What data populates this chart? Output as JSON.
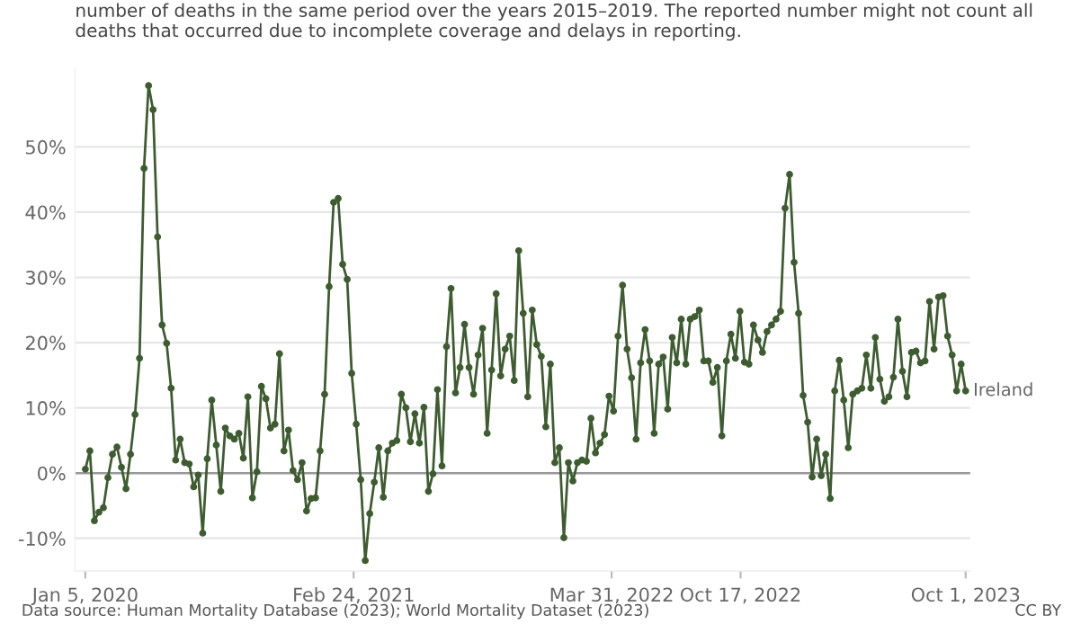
{
  "chart_data": {
    "type": "line",
    "subtitle": "number of deaths in the same period over the years 2015–2019. The reported number might not count all deaths that occurred due to incomplete coverage and delays in reporting.",
    "annotations": [
      "Data source: Human Mortality Database (2023); World Mortality Dataset (2023)",
      "CC BY"
    ],
    "x": [
      "2020-01-05",
      "2020-01-12",
      "2020-01-19",
      "2020-01-26",
      "2020-02-02",
      "2020-02-09",
      "2020-02-16",
      "2020-02-23",
      "2020-03-01",
      "2020-03-08",
      "2020-03-15",
      "2020-03-22",
      "2020-03-29",
      "2020-04-05",
      "2020-04-12",
      "2020-04-19",
      "2020-04-26",
      "2020-05-03",
      "2020-05-10",
      "2020-05-17",
      "2020-05-24",
      "2020-05-31",
      "2020-06-07",
      "2020-06-14",
      "2020-06-21",
      "2020-06-28",
      "2020-07-05",
      "2020-07-12",
      "2020-07-19",
      "2020-07-26",
      "2020-08-02",
      "2020-08-09",
      "2020-08-16",
      "2020-08-23",
      "2020-08-30",
      "2020-09-06",
      "2020-09-13",
      "2020-09-20",
      "2020-09-27",
      "2020-10-04",
      "2020-10-11",
      "2020-10-18",
      "2020-10-25",
      "2020-11-01",
      "2020-11-08",
      "2020-11-15",
      "2020-11-22",
      "2020-11-29",
      "2020-12-06",
      "2020-12-13",
      "2020-12-20",
      "2020-12-27",
      "2021-01-03",
      "2021-01-10",
      "2021-01-17",
      "2021-01-24",
      "2021-01-31",
      "2021-02-07",
      "2021-02-14",
      "2021-02-21",
      "2021-02-28",
      "2021-03-07",
      "2021-03-14",
      "2021-03-21",
      "2021-03-28",
      "2021-04-04",
      "2021-04-11",
      "2021-04-18",
      "2021-04-25",
      "2021-05-02",
      "2021-05-09",
      "2021-05-16",
      "2021-05-23",
      "2021-05-30",
      "2021-06-06",
      "2021-06-13",
      "2021-06-20",
      "2021-06-27",
      "2021-07-04",
      "2021-07-11",
      "2021-07-18",
      "2021-07-25",
      "2021-08-01",
      "2021-08-08",
      "2021-08-15",
      "2021-08-22",
      "2021-08-29",
      "2021-09-05",
      "2021-09-12",
      "2021-09-19",
      "2021-09-26",
      "2021-10-03",
      "2021-10-10",
      "2021-10-17",
      "2021-10-24",
      "2021-10-31",
      "2021-11-07",
      "2021-11-14",
      "2021-11-21",
      "2021-11-28",
      "2021-12-05",
      "2021-12-12",
      "2021-12-19",
      "2021-12-26",
      "2022-01-02",
      "2022-01-09",
      "2022-01-16",
      "2022-01-23",
      "2022-01-30",
      "2022-02-06",
      "2022-02-13",
      "2022-02-20",
      "2022-02-27",
      "2022-03-06",
      "2022-03-13",
      "2022-03-20",
      "2022-03-27",
      "2022-04-03",
      "2022-04-10",
      "2022-04-17",
      "2022-04-24",
      "2022-05-01",
      "2022-05-08",
      "2022-05-15",
      "2022-05-22",
      "2022-05-29",
      "2022-06-05",
      "2022-06-12",
      "2022-06-19",
      "2022-06-26",
      "2022-07-03",
      "2022-07-10",
      "2022-07-17",
      "2022-07-24",
      "2022-07-31",
      "2022-08-07",
      "2022-08-14",
      "2022-08-21",
      "2022-08-28",
      "2022-09-04",
      "2022-09-11",
      "2022-09-18",
      "2022-09-25",
      "2022-10-02",
      "2022-10-09",
      "2022-10-16",
      "2022-10-23",
      "2022-10-30",
      "2022-11-06",
      "2022-11-13",
      "2022-11-20",
      "2022-11-27",
      "2022-12-04",
      "2022-12-11",
      "2022-12-18",
      "2022-12-25",
      "2023-01-01",
      "2023-01-08",
      "2023-01-15",
      "2023-01-22",
      "2023-01-29",
      "2023-02-05",
      "2023-02-12",
      "2023-02-19",
      "2023-02-26",
      "2023-03-05",
      "2023-03-12",
      "2023-03-19",
      "2023-03-26",
      "2023-04-02",
      "2023-04-09",
      "2023-04-16",
      "2023-04-23",
      "2023-04-30",
      "2023-05-07",
      "2023-05-14",
      "2023-05-21",
      "2023-05-28",
      "2023-06-04",
      "2023-06-11",
      "2023-06-18",
      "2023-06-25",
      "2023-07-02",
      "2023-07-09",
      "2023-07-16",
      "2023-07-23",
      "2023-07-30",
      "2023-08-06",
      "2023-08-13",
      "2023-08-20",
      "2023-08-27",
      "2023-09-03",
      "2023-09-10",
      "2023-09-17",
      "2023-09-24",
      "2023-10-01"
    ],
    "series": [
      {
        "name": "Ireland",
        "color": "#3d5c30",
        "values": [
          0.6,
          3.4,
          -7.3,
          -6.0,
          -5.3,
          -0.7,
          2.9,
          4.0,
          0.9,
          -2.4,
          2.9,
          9.0,
          17.6,
          46.7,
          59.4,
          55.7,
          36.2,
          22.7,
          19.9,
          13.0,
          2.0,
          5.2,
          1.6,
          1.4,
          -2.1,
          -0.3,
          -9.2,
          2.2,
          11.2,
          4.3,
          -2.8,
          6.9,
          5.7,
          5.2,
          6.1,
          2.3,
          11.7,
          -3.8,
          0.2,
          13.3,
          11.4,
          6.9,
          7.5,
          18.3,
          3.4,
          6.6,
          0.4,
          -1.0,
          1.6,
          -5.8,
          -3.9,
          -3.8,
          3.4,
          12.1,
          28.6,
          41.5,
          42.1,
          32.0,
          29.7,
          15.3,
          7.5,
          -1.0,
          -13.4,
          -6.2,
          -1.4,
          3.9,
          -3.7,
          3.4,
          4.6,
          5.0,
          12.1,
          10.0,
          4.8,
          9.1,
          4.6,
          10.1,
          -2.8,
          -0.1,
          12.8,
          1.1,
          19.4,
          28.3,
          12.3,
          16.2,
          22.8,
          16.2,
          12.1,
          18.1,
          22.2,
          6.1,
          15.8,
          27.5,
          14.9,
          19.0,
          21.0,
          14.2,
          34.1,
          24.5,
          11.7,
          25.0,
          19.7,
          17.9,
          7.1,
          16.7,
          1.6,
          3.9,
          -9.9,
          1.6,
          -1.2,
          1.6,
          2.0,
          1.8,
          8.4,
          3.1,
          4.6,
          5.9,
          11.8,
          9.5,
          21.0,
          28.8,
          19.0,
          14.6,
          5.2,
          16.9,
          22.0,
          17.2,
          6.1,
          16.7,
          17.8,
          9.8,
          20.8,
          16.9,
          23.6,
          16.7,
          23.6,
          24.0,
          25.0,
          17.2,
          17.2,
          13.9,
          16.2,
          5.7,
          17.2,
          21.3,
          17.6,
          24.8,
          17.0,
          16.7,
          22.7,
          20.4,
          18.5,
          21.7,
          22.7,
          23.6,
          24.8,
          40.6,
          45.8,
          32.3,
          24.5,
          11.9,
          7.8,
          -0.6,
          5.2,
          -0.4,
          2.9,
          -3.9,
          12.6,
          17.3,
          11.2,
          3.9,
          12.1,
          12.6,
          13.0,
          18.1,
          13.0,
          20.8,
          14.4,
          11.0,
          11.7,
          14.7,
          23.6,
          15.6,
          11.7,
          18.5,
          18.7,
          16.9,
          17.2,
          26.3,
          19.0,
          27.0,
          27.2,
          21.0,
          18.1,
          12.6,
          16.7,
          12.6
        ]
      }
    ],
    "xlim": [
      "2019-12-20",
      "2023-10-08"
    ],
    "xticks": [
      {
        "value": "2020-01-05",
        "label": "Jan 5, 2020"
      },
      {
        "value": "2021-02-24",
        "label": "Feb 24, 2021"
      },
      {
        "value": "2022-03-31",
        "label": "Mar 31, 2022"
      },
      {
        "value": "2022-10-17",
        "label": "Oct 17, 2022"
      },
      {
        "value": "2023-10-01",
        "label": "Oct 1, 2023"
      }
    ],
    "ylim": [
      -15,
      62
    ],
    "yticks": [
      {
        "value": -10,
        "label": "-10%"
      },
      {
        "value": 0,
        "label": "0%"
      },
      {
        "value": 10,
        "label": "10%"
      },
      {
        "value": 20,
        "label": "20%"
      },
      {
        "value": 30,
        "label": "30%"
      },
      {
        "value": 40,
        "label": "40%"
      },
      {
        "value": 50,
        "label": "50%"
      }
    ],
    "ref_lines": [
      {
        "axis": "y",
        "value": 0,
        "color": "#999999"
      }
    ],
    "grid": "y",
    "marker": "circle",
    "line_style": "solid"
  }
}
